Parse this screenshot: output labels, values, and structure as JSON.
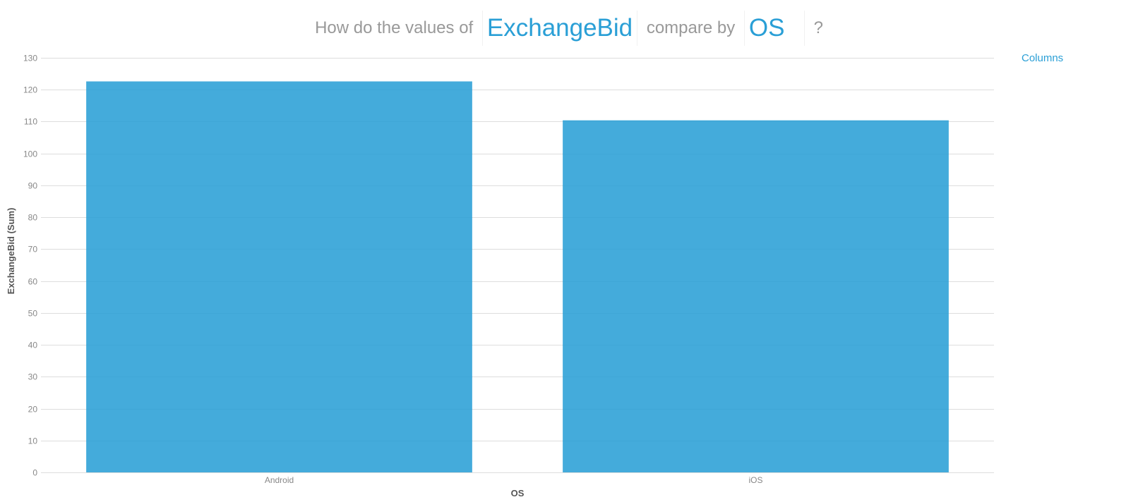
{
  "question": {
    "prefix": "How do the values of",
    "measure": "ExchangeBid",
    "middle": "compare by",
    "dimension": "OS",
    "suffix": "?"
  },
  "viz_toggle_label": "Columns",
  "colors": {
    "bar": "#2a9fd6",
    "accent": "#2a9fd6",
    "question_text": "#999999",
    "grid": "#dddddd"
  },
  "chart_data": {
    "type": "bar",
    "categories": [
      "Android",
      "iOS"
    ],
    "values": [
      122.6,
      110.4
    ],
    "xlabel": "OS",
    "ylabel": "ExchangeBid (Sum)",
    "ylim": [
      0,
      130
    ],
    "yticks": [
      0,
      10,
      20,
      30,
      40,
      50,
      60,
      70,
      80,
      90,
      100,
      110,
      120,
      130
    ],
    "grid": true,
    "legend": "none"
  }
}
